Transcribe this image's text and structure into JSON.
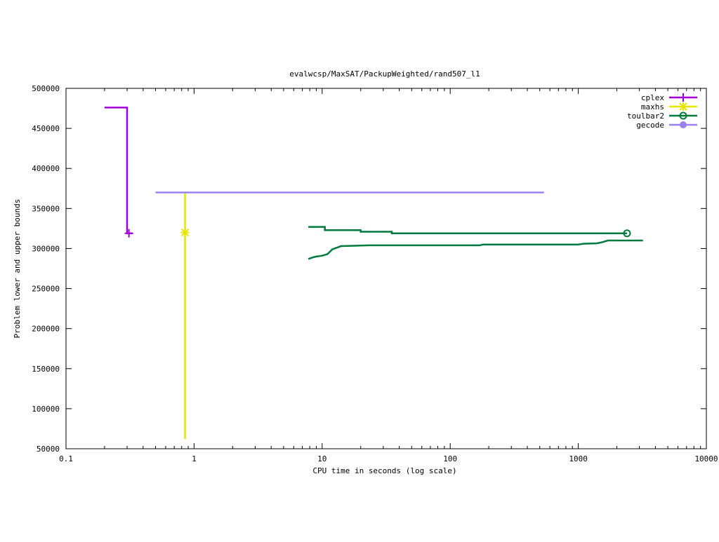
{
  "chart_data": {
    "type": "line",
    "title": "evalwcsp/MaxSAT/PackupWeighted/rand507_l1",
    "xlabel": "CPU time in seconds (log scale)",
    "ylabel": "Problem lower and upper bounds",
    "x_scale": "log",
    "xlim": [
      0.1,
      10000
    ],
    "ylim": [
      50000,
      500000
    ],
    "x_ticks": [
      0.1,
      1,
      10,
      100,
      1000,
      10000
    ],
    "x_tick_labels": [
      "0.1",
      "1",
      "10",
      "100",
      "1000",
      "10000"
    ],
    "y_ticks": [
      50000,
      100000,
      150000,
      200000,
      250000,
      300000,
      350000,
      400000,
      450000,
      500000
    ],
    "y_tick_labels": [
      "50000",
      "100000",
      "150000",
      "200000",
      "250000",
      "300000",
      "350000",
      "400000",
      "450000",
      "500000"
    ],
    "grid": false,
    "legend_position": "top-right",
    "series": [
      {
        "name": "cplex",
        "color": "#a000d8",
        "marker": "plus",
        "lines": [
          [
            [
              0.2,
              476000
            ],
            [
              0.3,
              476000
            ],
            [
              0.3,
              319000
            ],
            [
              0.33,
              319000
            ]
          ]
        ],
        "markers": [
          [
            0.31,
            319000
          ]
        ]
      },
      {
        "name": "maxhs",
        "color": "#e6e600",
        "marker": "asterisk",
        "lines": [
          [
            [
              0.85,
              370000
            ],
            [
              0.85,
              62000
            ]
          ]
        ],
        "markers": [
          [
            0.85,
            320000
          ]
        ]
      },
      {
        "name": "toulbar2",
        "color": "#007a3d",
        "marker": "circle-open",
        "lines": [
          [
            [
              7.8,
              327000
            ],
            [
              10.5,
              327000
            ],
            [
              10.5,
              323000
            ],
            [
              20,
              323000
            ],
            [
              20,
              321000
            ],
            [
              35,
              321000
            ],
            [
              35,
              319000
            ],
            [
              2400,
              319000
            ]
          ],
          [
            [
              7.8,
              287000
            ],
            [
              8.5,
              289000
            ],
            [
              9,
              290000
            ],
            [
              10,
              291000
            ],
            [
              11,
              293000
            ],
            [
              11.5,
              296000
            ],
            [
              12,
              299000
            ],
            [
              13.5,
              302000
            ],
            [
              14,
              303000
            ],
            [
              23,
              304000
            ],
            [
              170,
              304000
            ],
            [
              180,
              305000
            ],
            [
              1000,
              305000
            ],
            [
              1100,
              306000
            ],
            [
              1400,
              306500
            ],
            [
              1550,
              308000
            ],
            [
              1700,
              310000
            ],
            [
              3200,
              310000
            ]
          ]
        ],
        "markers": [
          [
            2400,
            319000
          ]
        ]
      },
      {
        "name": "gecode",
        "color": "#9a80f0",
        "marker": "circle-filled",
        "lines": [
          [
            [
              0.5,
              370000
            ],
            [
              540,
              370000
            ]
          ]
        ],
        "markers": []
      }
    ]
  }
}
